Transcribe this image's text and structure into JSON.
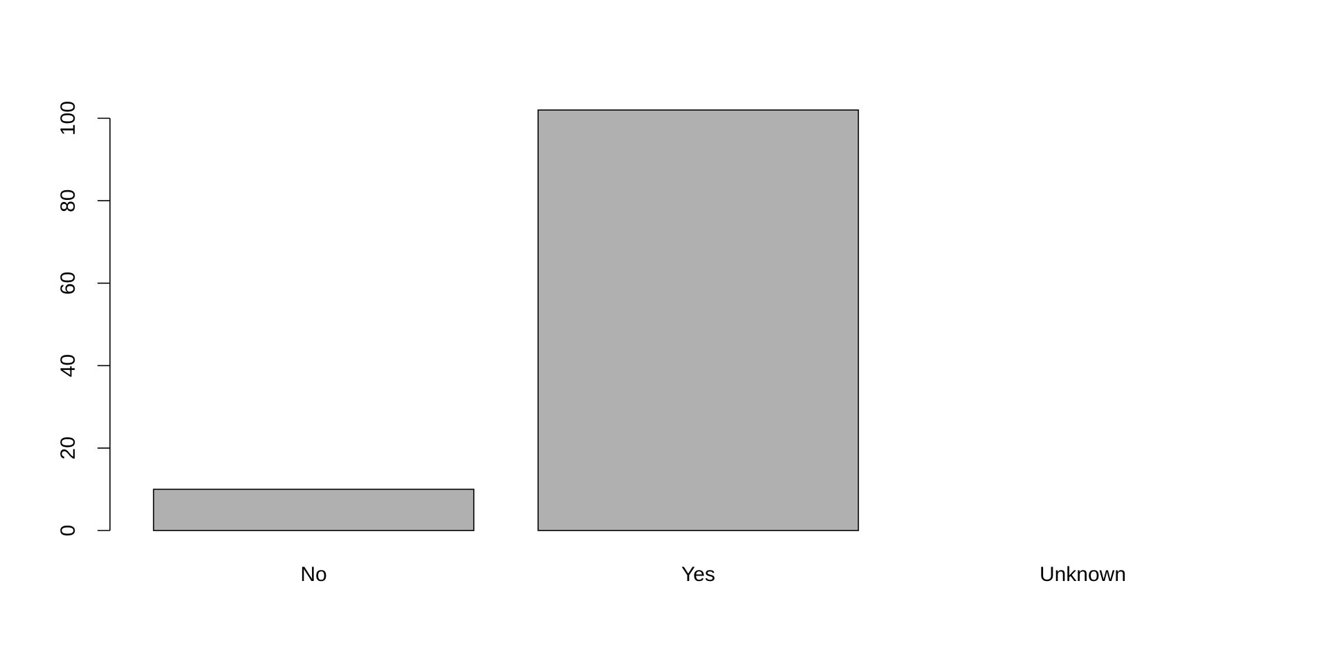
{
  "chart_data": {
    "type": "bar",
    "categories": [
      "No",
      "Yes",
      "Unknown"
    ],
    "values": [
      10,
      102,
      0
    ],
    "title": "",
    "xlabel": "",
    "ylabel": "",
    "ylim": [
      0,
      100
    ],
    "yticks": [
      0,
      20,
      40,
      60,
      80,
      100
    ],
    "grid": false,
    "bar_fill": "#b0b0b0",
    "bar_stroke": "#000000"
  }
}
